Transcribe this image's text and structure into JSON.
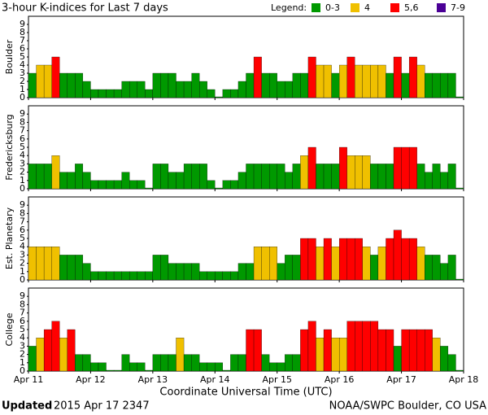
{
  "chart_data": [
    {
      "type": "bar",
      "title": "3-hour K-indices for Last 7 days",
      "ylabel": "Boulder",
      "values": [
        3,
        4,
        4,
        5,
        3,
        3,
        3,
        2,
        1,
        1,
        1,
        1,
        2,
        2,
        2,
        1,
        3,
        3,
        3,
        2,
        2,
        3,
        2,
        1,
        0,
        1,
        1,
        2,
        3,
        5,
        3,
        3,
        2,
        2,
        3,
        3,
        5,
        4,
        4,
        3,
        4,
        5,
        4,
        4,
        4,
        4,
        3,
        5,
        3,
        5,
        4,
        3,
        3,
        3,
        3,
        0
      ],
      "ylim": [
        0,
        10
      ],
      "yticks": [
        0,
        1,
        2,
        3,
        4,
        5,
        6,
        7,
        8,
        9
      ],
      "xlim": [
        0,
        168
      ],
      "bar_width": 3
    },
    {
      "type": "bar",
      "ylabel": "Fredericksburg",
      "values": [
        3,
        3,
        3,
        4,
        2,
        2,
        3,
        2,
        1,
        1,
        1,
        1,
        2,
        1,
        1,
        0,
        3,
        3,
        2,
        2,
        3,
        3,
        3,
        1,
        0,
        1,
        1,
        2,
        3,
        3,
        3,
        3,
        3,
        2,
        3,
        4,
        5,
        3,
        3,
        3,
        5,
        4,
        4,
        4,
        3,
        3,
        3,
        5,
        5,
        5,
        3,
        2,
        3,
        2,
        3,
        0
      ],
      "ylim": [
        0,
        10
      ],
      "yticks": [
        0,
        1,
        2,
        3,
        4,
        5,
        6,
        7,
        8,
        9
      ],
      "xlim": [
        0,
        168
      ],
      "bar_width": 3
    },
    {
      "type": "bar",
      "ylabel": "Est. Planetary",
      "values": [
        4,
        4,
        4,
        4,
        3,
        3,
        3,
        2,
        1,
        1,
        1,
        1,
        1,
        1,
        1,
        1,
        3,
        3,
        2,
        2,
        2,
        2,
        1,
        1,
        1,
        1,
        1,
        2,
        2,
        4,
        4,
        4,
        2,
        3,
        3,
        5,
        5,
        4,
        5,
        4,
        5,
        5,
        5,
        4,
        3,
        4,
        5,
        6,
        5,
        5,
        4,
        3,
        3,
        2,
        3,
        0
      ],
      "ylim": [
        0,
        10
      ],
      "yticks": [
        0,
        1,
        2,
        3,
        4,
        5,
        6,
        7,
        8,
        9
      ],
      "xlim": [
        0,
        168
      ],
      "bar_width": 3
    },
    {
      "type": "bar",
      "ylabel": "College",
      "values": [
        3,
        4,
        5,
        6,
        4,
        5,
        2,
        2,
        1,
        1,
        0,
        0,
        2,
        1,
        1,
        0,
        2,
        2,
        2,
        4,
        2,
        2,
        1,
        1,
        1,
        0,
        2,
        2,
        5,
        5,
        2,
        1,
        1,
        2,
        2,
        5,
        6,
        4,
        5,
        4,
        4,
        6,
        6,
        6,
        6,
        5,
        5,
        3,
        5,
        5,
        5,
        5,
        4,
        3,
        2,
        0
      ],
      "ylim": [
        0,
        10
      ],
      "yticks": [
        0,
        1,
        2,
        3,
        4,
        5,
        6,
        7,
        8,
        9
      ],
      "xlim": [
        0,
        168
      ],
      "bar_width": 3,
      "xlabel": "Coordinate Universal Time (UTC)",
      "xticks": [
        {
          "value": 0,
          "label": "Apr 11"
        },
        {
          "value": 24,
          "label": "Apr 12"
        },
        {
          "value": 48,
          "label": "Apr 13"
        },
        {
          "value": 72,
          "label": "Apr 14"
        },
        {
          "value": 96,
          "label": "Apr 15"
        },
        {
          "value": 120,
          "label": "Apr 16"
        },
        {
          "value": 144,
          "label": "Apr 17"
        },
        {
          "value": 168,
          "label": "Apr 18"
        }
      ]
    }
  ],
  "legend": {
    "title": "Legend:",
    "items": [
      {
        "label": "0-3",
        "color": "#009900",
        "max": 3
      },
      {
        "label": "4",
        "color": "#f0c000",
        "max": 4
      },
      {
        "label": "5,6",
        "color": "#ff0000",
        "max": 6
      },
      {
        "label": "7-9",
        "color": "#4b0096",
        "max": 9
      }
    ]
  },
  "footer": {
    "updated_label": "Updated",
    "updated": "2015 Apr 17 2347",
    "source": "NOAA/SWPC Boulder, CO USA"
  }
}
